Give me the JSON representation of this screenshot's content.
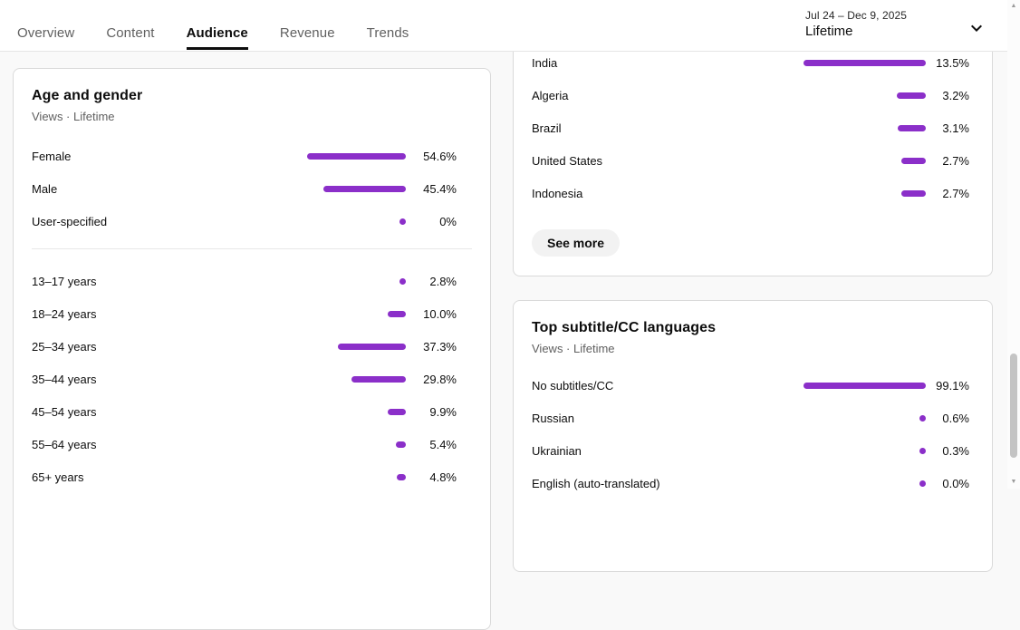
{
  "colors": {
    "accent": "#8b2fc9"
  },
  "header": {
    "tabs": [
      {
        "label": "Overview",
        "active": false
      },
      {
        "label": "Content",
        "active": false
      },
      {
        "label": "Audience",
        "active": true
      },
      {
        "label": "Revenue",
        "active": false
      },
      {
        "label": "Trends",
        "active": false
      }
    ],
    "date_range": {
      "dates": "Jul 24 – Dec 9, 2025",
      "period": "Lifetime"
    }
  },
  "age_gender_card": {
    "title": "Age and gender",
    "subtitle": "Views · Lifetime",
    "bar_scale": 100,
    "gender_rows": [
      {
        "label": "Female",
        "value": "54.6%",
        "pct": 54.6
      },
      {
        "label": "Male",
        "value": "45.4%",
        "pct": 45.4
      },
      {
        "label": "User-specified",
        "value": "0%",
        "pct": 0
      }
    ],
    "age_rows": [
      {
        "label": "13–17 years",
        "value": "2.8%",
        "pct": 2.8
      },
      {
        "label": "18–24 years",
        "value": "10.0%",
        "pct": 10.0
      },
      {
        "label": "25–34 years",
        "value": "37.3%",
        "pct": 37.3
      },
      {
        "label": "35–44 years",
        "value": "29.8%",
        "pct": 29.8
      },
      {
        "label": "45–54 years",
        "value": "9.9%",
        "pct": 9.9
      },
      {
        "label": "55–64 years",
        "value": "5.4%",
        "pct": 5.4
      },
      {
        "label": "65+ years",
        "value": "4.8%",
        "pct": 4.8
      }
    ]
  },
  "geography_card": {
    "bar_scale": 13.5,
    "rows": [
      {
        "label": "India",
        "value": "13.5%",
        "pct": 13.5
      },
      {
        "label": "Algeria",
        "value": "3.2%",
        "pct": 3.2
      },
      {
        "label": "Brazil",
        "value": "3.1%",
        "pct": 3.1
      },
      {
        "label": "United States",
        "value": "2.7%",
        "pct": 2.7
      },
      {
        "label": "Indonesia",
        "value": "2.7%",
        "pct": 2.7
      }
    ],
    "see_more_label": "See more"
  },
  "subtitles_card": {
    "title": "Top subtitle/CC languages",
    "subtitle": "Views · Lifetime",
    "bar_scale": 99.1,
    "rows": [
      {
        "label": "No subtitles/CC",
        "value": "99.1%",
        "pct": 99.1
      },
      {
        "label": "Russian",
        "value": "0.6%",
        "pct": 0.6
      },
      {
        "label": "Ukrainian",
        "value": "0.3%",
        "pct": 0.3
      },
      {
        "label": "English (auto-translated)",
        "value": "0.0%",
        "pct": 0.0
      }
    ]
  },
  "icons": {
    "scroll_up": "▲",
    "scroll_down": "▼"
  },
  "chart_data": [
    {
      "type": "bar",
      "title": "Age and gender",
      "subtitle": "Views · Lifetime",
      "categories": [
        "Female",
        "Male",
        "User-specified",
        "13–17 years",
        "18–24 years",
        "25–34 years",
        "35–44 years",
        "45–54 years",
        "55–64 years",
        "65+ years"
      ],
      "values": [
        54.6,
        45.4,
        0,
        2.8,
        10.0,
        37.3,
        29.8,
        9.9,
        5.4,
        4.8
      ],
      "unit": "%",
      "xlim": [
        0,
        100
      ],
      "bar_color": "#8b2fc9"
    },
    {
      "type": "bar",
      "title": "",
      "categories": [
        "India",
        "Algeria",
        "Brazil",
        "United States",
        "Indonesia"
      ],
      "values": [
        13.5,
        3.2,
        3.1,
        2.7,
        2.7
      ],
      "unit": "%",
      "bars_scaled_to_max": 13.5,
      "bar_color": "#8b2fc9"
    },
    {
      "type": "bar",
      "title": "Top subtitle/CC languages",
      "subtitle": "Views · Lifetime",
      "categories": [
        "No subtitles/CC",
        "Russian",
        "Ukrainian",
        "English (auto-translated)"
      ],
      "values": [
        99.1,
        0.6,
        0.3,
        0.0
      ],
      "unit": "%",
      "bars_scaled_to_max": 99.1,
      "bar_color": "#8b2fc9"
    }
  ]
}
